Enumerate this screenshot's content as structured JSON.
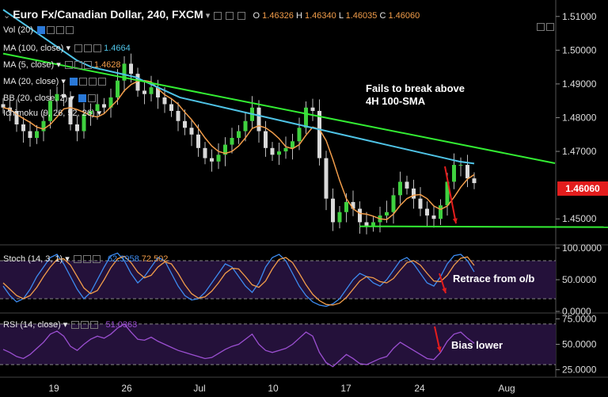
{
  "header": {
    "title": "Euro Fx/Canadian Dollar, 240, FXCM",
    "ohlc_labels": [
      "O",
      "H",
      "L",
      "C"
    ],
    "ohlc_values": [
      "1.46326",
      "1.46340",
      "1.46035",
      "1.46060"
    ]
  },
  "indicators": {
    "vol": "Vol (20)",
    "ma100": "MA (100, close)",
    "ma100_value": "1.4664",
    "ma5": "MA (5, close)",
    "ma5_value": "1.4628",
    "ma20": "MA (20, close)",
    "bb": "BB (20, close, 2)",
    "ichimoku": "Ichimoku (9, 26, 52, 26)"
  },
  "annotations": {
    "main": "Fails to break above\n4H 100-SMA",
    "stoch": "Retrace from o/b",
    "rsi": "Bias lower"
  },
  "current_price": "1.46060",
  "colors": {
    "background": "#000000",
    "candle": "#3fd13f",
    "ma5": "#f29d4a",
    "ma100": "#4fc3e6",
    "trendline": "#33ee33",
    "arrow": "#e31d1d",
    "stoch_k": "#3d8bf0",
    "stoch_d": "#f29d4a",
    "rsi": "#9b4fd1",
    "panel_fill": "#24113a"
  },
  "chart_data": [
    {
      "type": "candlestick",
      "title": "Euro Fx/Canadian Dollar, 240, FXCM",
      "ylim": [
        1.443,
        1.513
      ],
      "y_ticks": [
        "1.51000",
        "1.50000",
        "1.49000",
        "1.48000",
        "1.47000",
        "1.45000"
      ],
      "x_tick_labels": [
        "19",
        "26",
        "Jul",
        "10",
        "17",
        "24",
        "Aug"
      ],
      "close_series": [
        1.483,
        1.482,
        1.478,
        1.476,
        1.474,
        1.476,
        1.479,
        1.485,
        1.487,
        1.486,
        1.478,
        1.476,
        1.481,
        1.482,
        1.484,
        1.483,
        1.486,
        1.491,
        1.496,
        1.493,
        1.488,
        1.487,
        1.489,
        1.486,
        1.484,
        1.482,
        1.479,
        1.477,
        1.475,
        1.471,
        1.468,
        1.467,
        1.469,
        1.472,
        1.474,
        1.476,
        1.479,
        1.483,
        1.476,
        1.471,
        1.469,
        1.47,
        1.471,
        1.473,
        1.477,
        1.483,
        1.482,
        1.468,
        1.456,
        1.449,
        1.452,
        1.455,
        1.453,
        1.449,
        1.448,
        1.449,
        1.451,
        1.452,
        1.457,
        1.461,
        1.459,
        1.456,
        1.453,
        1.451,
        1.45,
        1.454,
        1.461,
        1.466,
        1.466,
        1.462,
        1.4606
      ],
      "moving_averages": [
        {
          "name": "MA (5, close)",
          "last": 1.4628
        },
        {
          "name": "MA (100, close)",
          "last": 1.4664,
          "values": [
            1.512,
            1.509,
            1.506,
            1.503,
            1.5,
            1.497,
            1.495,
            1.494,
            1.493,
            1.492,
            1.49,
            1.488,
            1.486,
            1.485,
            1.484,
            1.483,
            1.482,
            1.481,
            1.48,
            1.479,
            1.478,
            1.477,
            1.476,
            1.475,
            1.474,
            1.473,
            1.472,
            1.471,
            1.47,
            1.469,
            1.468,
            1.467,
            1.4664
          ]
        }
      ],
      "trendlines": [
        {
          "name": "resistance",
          "from": [
            0,
            1.499
          ],
          "to": [
            82,
            1.4665
          ]
        },
        {
          "name": "support",
          "from": [
            53,
            1.4478
          ],
          "to": [
            96,
            1.4475
          ]
        }
      ],
      "annotation": "Fails to break above 4H 100-SMA"
    },
    {
      "type": "line",
      "title": "Stoch (14, 3, 1)",
      "ylim": [
        0,
        100
      ],
      "y_ticks": [
        "100.0000",
        "50.0000",
        "0.0000"
      ],
      "levels": [
        80,
        20
      ],
      "series": [
        {
          "name": "%K",
          "last": 62.3958,
          "values": [
            40,
            25,
            15,
            20,
            35,
            55,
            70,
            85,
            90,
            75,
            55,
            35,
            20,
            30,
            50,
            70,
            88,
            92,
            80,
            60,
            45,
            55,
            70,
            85,
            80,
            60,
            40,
            25,
            18,
            20,
            30,
            45,
            60,
            75,
            70,
            55,
            40,
            30,
            45,
            70,
            85,
            90,
            80,
            60,
            40,
            25,
            15,
            10,
            8,
            12,
            20,
            35,
            50,
            60,
            55,
            45,
            40,
            50,
            65,
            80,
            85,
            75,
            60,
            45,
            40,
            55,
            75,
            88,
            90,
            80,
            62.3958
          ]
        },
        {
          "name": "%D",
          "last": 72.502,
          "values": [
            45,
            35,
            25,
            20,
            25,
            38,
            55,
            70,
            82,
            83,
            73,
            55,
            37,
            28,
            33,
            50,
            69,
            83,
            87,
            77,
            62,
            53,
            57,
            70,
            78,
            75,
            60,
            42,
            28,
            21,
            23,
            32,
            45,
            60,
            68,
            67,
            55,
            42,
            38,
            48,
            67,
            82,
            85,
            77,
            60,
            42,
            27,
            17,
            11,
            10,
            13,
            22,
            35,
            48,
            55,
            53,
            47,
            45,
            52,
            65,
            77,
            80,
            73,
            60,
            48,
            47,
            57,
            73,
            84,
            86,
            72.502
          ]
        }
      ],
      "annotation": "Retrace from o/b"
    },
    {
      "type": "line",
      "title": "RSI (14, close)",
      "ylim": [
        20,
        80
      ],
      "y_ticks": [
        "75.0000",
        "50.0000",
        "25.0000"
      ],
      "levels": [
        70,
        30
      ],
      "series": [
        {
          "name": "RSI",
          "last": 51.0363,
          "values": [
            45,
            42,
            38,
            36,
            40,
            46,
            52,
            60,
            63,
            58,
            48,
            44,
            50,
            55,
            58,
            56,
            60,
            66,
            70,
            62,
            55,
            54,
            57,
            53,
            50,
            47,
            44,
            42,
            40,
            38,
            36,
            37,
            41,
            45,
            48,
            50,
            55,
            60,
            50,
            44,
            42,
            44,
            46,
            50,
            56,
            62,
            58,
            42,
            32,
            28,
            34,
            40,
            36,
            31,
            30,
            33,
            36,
            38,
            46,
            52,
            48,
            44,
            40,
            36,
            35,
            42,
            53,
            60,
            62,
            56,
            51.0363
          ]
        }
      ],
      "annotation": "Bias lower"
    }
  ]
}
